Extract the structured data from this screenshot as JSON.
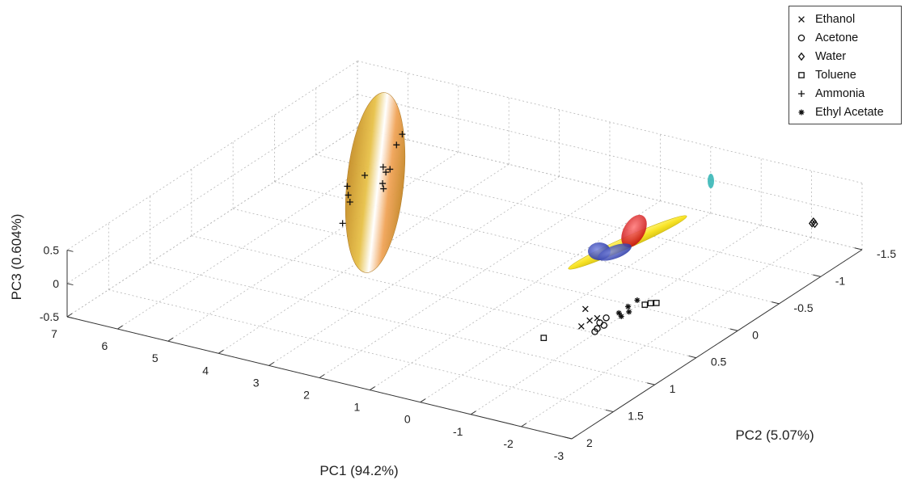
{
  "chart_data": {
    "type": "scatter",
    "projection": "3d",
    "title": "",
    "xlabel": "PC1 (94.2%)",
    "ylabel": "PC2 (5.07%)",
    "zlabel": "PC3 (0.604%)",
    "xlim": [
      -3,
      7
    ],
    "ylim": [
      -1.5,
      2
    ],
    "zlim": [
      -0.5,
      0.5
    ],
    "x_ticks": [
      "7",
      "6",
      "5",
      "4",
      "3",
      "2",
      "1",
      "0",
      "-1",
      "-2",
      "-3"
    ],
    "y_ticks": [
      "-1.5",
      "-1",
      "-0.5",
      "0",
      "0.5",
      "1",
      "1.5",
      "2"
    ],
    "z_ticks": [
      "0.5",
      "0",
      "-0.5"
    ],
    "grid": true,
    "legend_position": "top-right",
    "series": [
      {
        "name": "Ethanol",
        "marker": "x",
        "points": [
          [
            -1.1,
            0.68,
            0.03
          ],
          [
            -1.3,
            0.75,
            -0.05
          ],
          [
            -1.25,
            0.82,
            -0.09
          ],
          [
            -1.4,
            0.72,
            -0.02
          ]
        ]
      },
      {
        "name": "Acetone",
        "marker": "o",
        "points": [
          [
            -1.45,
            0.72,
            -0.08
          ],
          [
            -1.5,
            0.78,
            -0.11
          ],
          [
            -1.55,
            0.84,
            -0.1
          ],
          [
            -1.6,
            0.76,
            -0.06
          ],
          [
            -1.48,
            0.66,
            -0.05
          ]
        ]
      },
      {
        "name": "Water",
        "marker": "diamond",
        "points": [
          [
            -2.7,
            -1.08,
            0.18
          ],
          [
            -2.72,
            -1.1,
            0.16
          ],
          [
            -2.71,
            -1.09,
            0.2
          ]
        ]
      },
      {
        "name": "Toluene",
        "marker": "square",
        "points": [
          [
            -0.8,
            1.0,
            -0.2
          ],
          [
            -1.9,
            0.38,
            0.02
          ],
          [
            -1.95,
            0.34,
            0.0
          ],
          [
            -1.85,
            0.42,
            0.02
          ]
        ]
      },
      {
        "name": "Ammonia",
        "marker": "plus",
        "points": [
          [
            4.55,
            -0.55,
            0.62
          ],
          [
            4.5,
            -0.45,
            0.55
          ],
          [
            4.3,
            -0.2,
            0.38
          ],
          [
            4.2,
            -0.1,
            0.31
          ],
          [
            4.1,
            -0.05,
            0.29
          ],
          [
            4.35,
            -0.28,
            0.35
          ],
          [
            4.6,
            -0.35,
            0.28
          ],
          [
            4.8,
            -0.25,
            0.2
          ],
          [
            4.9,
            -0.1,
            0.14
          ],
          [
            4.75,
            -0.02,
            0.1
          ],
          [
            4.6,
            0.05,
            0.08
          ],
          [
            4.5,
            0.2,
            -0.1
          ]
        ]
      },
      {
        "name": "Ethyl Acetate",
        "marker": "asterisk",
        "points": [
          [
            -1.7,
            0.42,
            0.06
          ],
          [
            -1.65,
            0.5,
            0.02
          ],
          [
            -1.75,
            0.55,
            0.0
          ],
          [
            -1.6,
            0.58,
            -0.02
          ],
          [
            -1.68,
            0.6,
            -0.04
          ]
        ]
      }
    ]
  }
}
